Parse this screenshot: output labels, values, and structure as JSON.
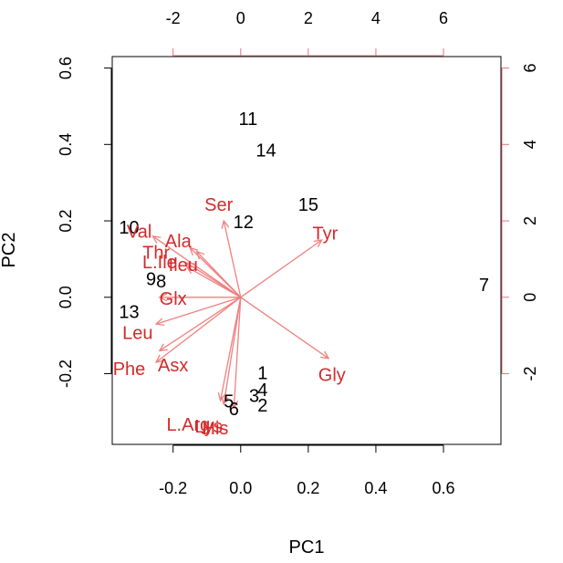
{
  "chart_data": {
    "type": "scatter",
    "title": "",
    "xlabel": "PC1",
    "ylabel": "PC2",
    "xlim": [
      -0.38,
      0.77
    ],
    "ylim": [
      -0.385,
      0.63
    ],
    "xticks": [
      -0.2,
      0.0,
      0.2,
      0.4,
      0.6
    ],
    "xtick_labels": [
      "-0.2",
      "0.0",
      "0.2",
      "0.4",
      "0.6"
    ],
    "yticks": [
      -0.2,
      0.0,
      0.2,
      0.4,
      0.6
    ],
    "ytick_labels": [
      "-0.2",
      "0.0",
      "0.2",
      "0.4",
      "0.6"
    ],
    "top_axis": {
      "ticks": [
        -2,
        0,
        2,
        4,
        6
      ],
      "tick_labels": [
        "-2",
        "0",
        "2",
        "4",
        "6"
      ],
      "color": "#e8737a"
    },
    "right_axis": {
      "ticks": [
        -2,
        0,
        2,
        4,
        6
      ],
      "tick_labels": [
        "-2",
        "0",
        "2",
        "4",
        "6"
      ],
      "color": "#e8737a"
    },
    "secondary_scale": 0.1,
    "observations": [
      {
        "label": "1",
        "x": 0.065,
        "y": -0.197
      },
      {
        "label": "2",
        "x": 0.065,
        "y": -0.282
      },
      {
        "label": "3",
        "x": 0.04,
        "y": -0.257
      },
      {
        "label": "4",
        "x": 0.065,
        "y": -0.242
      },
      {
        "label": "5",
        "x": -0.035,
        "y": -0.272
      },
      {
        "label": "6",
        "x": -0.02,
        "y": -0.292
      },
      {
        "label": "7",
        "x": 0.72,
        "y": 0.033
      },
      {
        "label": "8",
        "x": -0.235,
        "y": 0.043
      },
      {
        "label": "9",
        "x": -0.265,
        "y": 0.048
      },
      {
        "label": "10",
        "x": -0.33,
        "y": 0.183
      },
      {
        "label": "11",
        "x": 0.022,
        "y": 0.468
      },
      {
        "label": "12",
        "x": 0.008,
        "y": 0.198
      },
      {
        "label": "13",
        "x": -0.33,
        "y": -0.037
      },
      {
        "label": "14",
        "x": 0.075,
        "y": 0.385
      },
      {
        "label": "15",
        "x": 0.2,
        "y": 0.243
      }
    ],
    "variables": [
      {
        "label": "Ser",
        "x": -0.05,
        "y": 0.2,
        "lx": -0.065,
        "ly": 0.243
      },
      {
        "label": "Val",
        "x": -0.26,
        "y": 0.16,
        "lx": -0.3,
        "ly": 0.173
      },
      {
        "label": "Ala",
        "x": -0.15,
        "y": 0.13,
        "lx": -0.185,
        "ly": 0.148
      },
      {
        "label": "Thr",
        "x": -0.13,
        "y": 0.12,
        "lx": -0.25,
        "ly": 0.118
      },
      {
        "label": "L.Ile",
        "x": -0.16,
        "y": 0.09,
        "lx": -0.24,
        "ly": 0.093
      },
      {
        "label": "Ileu",
        "x": -0.16,
        "y": 0.08,
        "lx": -0.17,
        "ly": 0.085
      },
      {
        "label": "Glx",
        "x": -0.24,
        "y": 0.0,
        "lx": -0.2,
        "ly": -0.003
      },
      {
        "label": "Leu",
        "x": -0.25,
        "y": -0.07,
        "lx": -0.305,
        "ly": -0.092
      },
      {
        "label": "Phe",
        "x": -0.24,
        "y": -0.14,
        "lx": -0.33,
        "ly": -0.187
      },
      {
        "label": "Asx",
        "x": -0.25,
        "y": -0.17,
        "lx": -0.2,
        "ly": -0.177
      },
      {
        "label": "Tyr",
        "x": 0.24,
        "y": 0.15,
        "lx": 0.25,
        "ly": 0.168
      },
      {
        "label": "Gly",
        "x": 0.26,
        "y": -0.16,
        "lx": 0.27,
        "ly": -0.202
      },
      {
        "label": "L.Arg",
        "x": -0.06,
        "y": -0.27,
        "lx": -0.155,
        "ly": -0.332
      },
      {
        "label": "His",
        "x": -0.02,
        "y": -0.29,
        "lx": -0.075,
        "ly": -0.342
      },
      {
        "label": "Lys",
        "x": -0.05,
        "y": -0.28,
        "lx": -0.095,
        "ly": -0.337
      }
    ],
    "grid": false,
    "legend": "none"
  }
}
